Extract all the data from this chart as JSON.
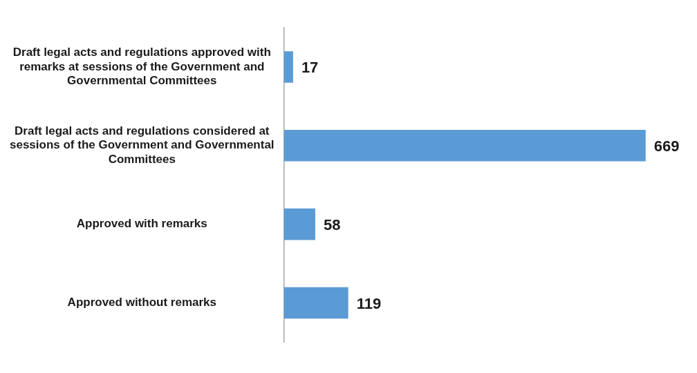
{
  "chart_data": {
    "type": "bar",
    "orientation": "horizontal",
    "categories": [
      "Draft legal acts and regulations approved with remarks at sessions of the Government and Governmental Committees",
      "Draft legal acts and regulations considered at sessions of the Government and Governmental Committees",
      "Approved with remarks",
      "Approved without remarks"
    ],
    "values": [
      17,
      669,
      58,
      119
    ],
    "color": "#5b9bd5",
    "data_labels": true,
    "grid": false,
    "tick_labels": "y"
  }
}
